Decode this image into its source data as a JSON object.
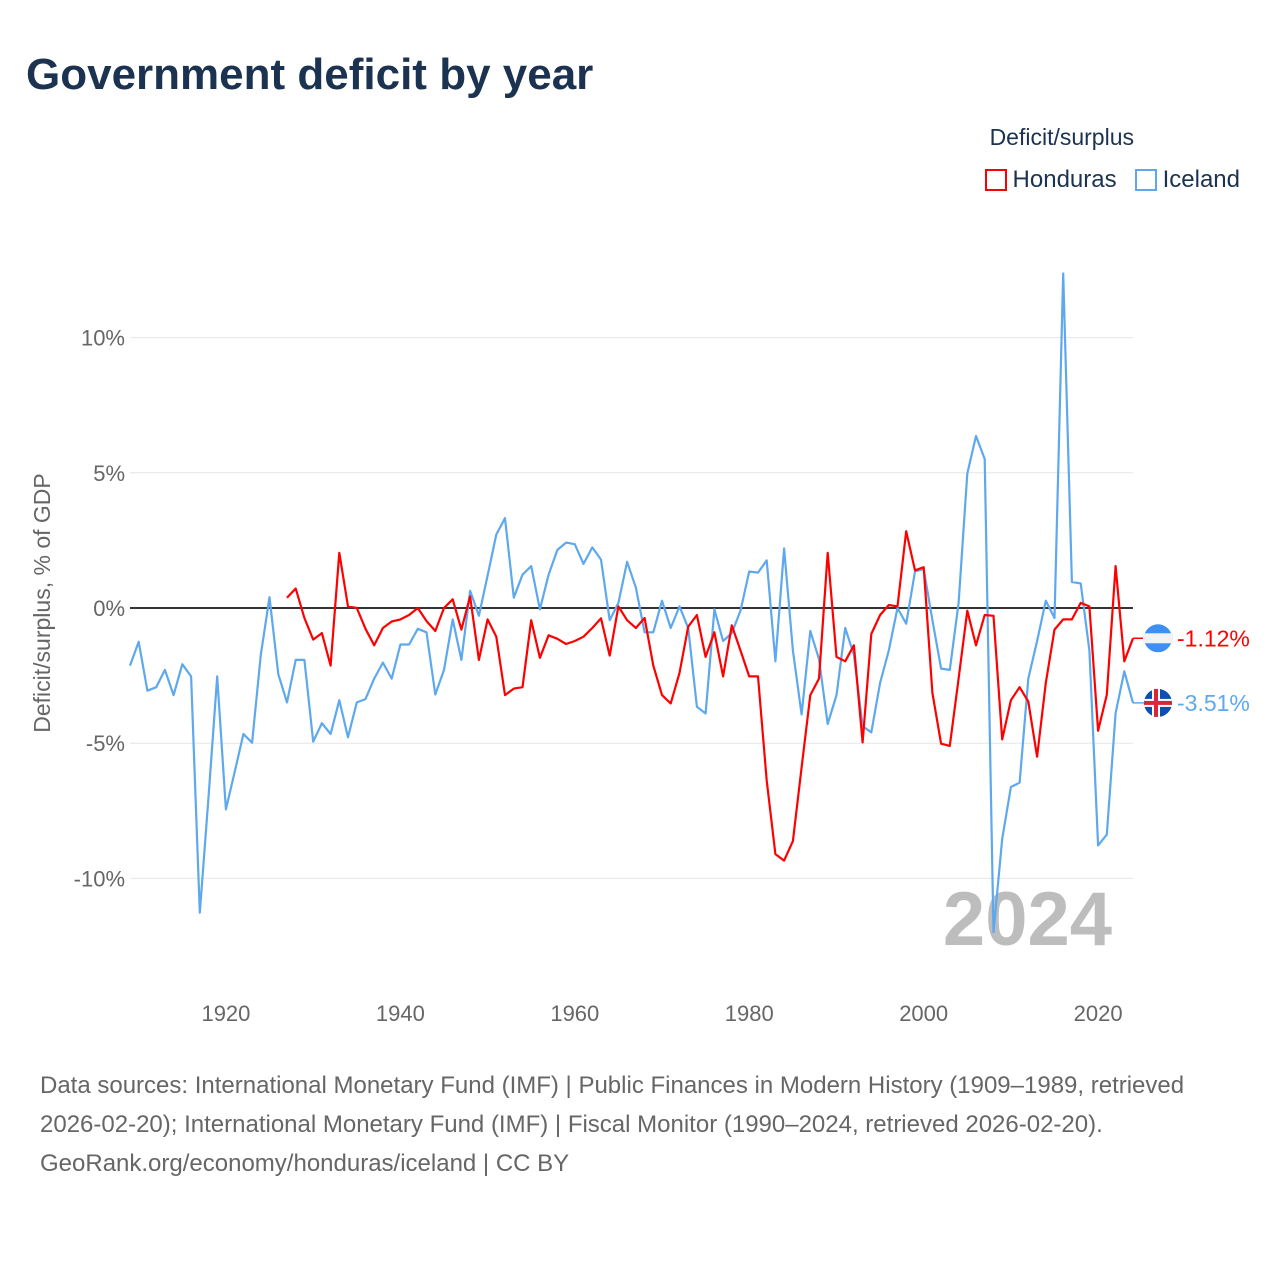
{
  "title": "Government deficit by year",
  "legend": {
    "title": "Deficit/surplus"
  },
  "chart_data": {
    "type": "line",
    "title": "Government deficit by year",
    "ylabel": "Deficit/surplus, % of GDP",
    "xlabel": "",
    "xlim": [
      1909,
      2024
    ],
    "ylim": [
      -12.5,
      12.5
    ],
    "yticks": [
      10,
      5,
      0,
      -5,
      -10
    ],
    "ytick_labels": [
      "10%",
      "5%",
      "0%",
      "-5%",
      "-10%"
    ],
    "xticks": [
      1920,
      1940,
      1960,
      1980,
      2000,
      2020
    ],
    "xtick_labels": [
      "1920",
      "1940",
      "1960",
      "1980",
      "2000",
      "2020"
    ],
    "grid": true,
    "legend_position": "top-right",
    "current_year": "2024",
    "series": [
      {
        "name": "Honduras",
        "color": "#ff0000",
        "end_label": "-1.12%",
        "start_year": 1927,
        "values": [
          0.38,
          0.72,
          -0.37,
          -1.17,
          -0.93,
          -2.13,
          2.04,
          0.06,
          0,
          -0.77,
          -1.38,
          -0.74,
          -0.5,
          -0.42,
          -0.26,
          0,
          -0.48,
          -0.85,
          0,
          0.32,
          -0.8,
          0.43,
          -1.92,
          -0.42,
          -1.06,
          -3.22,
          -2.98,
          -2.93,
          -0.45,
          -1.84,
          -1.01,
          -1.14,
          -1.33,
          -1.22,
          -1.06,
          -0.74,
          -0.38,
          -1.76,
          0.06,
          -0.45,
          -0.74,
          -0.37,
          -2.13,
          -3.22,
          -3.53,
          -2.4,
          -0.69,
          -0.26,
          -1.81,
          -0.9,
          -2.53,
          -0.64,
          -1.57,
          -2.53,
          -2.53,
          -6.38,
          -9.1,
          -9.34,
          -8.62,
          -5.9,
          -3.22,
          -2.61,
          2.04,
          -1.81,
          -1.97,
          -1.38,
          -4.97,
          -0.96,
          -0.26,
          0.11,
          0.06,
          2.84,
          1.39,
          1.51,
          -3.14,
          -5.02,
          -5.1,
          -2.61,
          -0.1,
          -1.38,
          -0.26,
          -0.29,
          -4.86,
          -3.41,
          -2.93,
          -3.46,
          -5.5,
          -2.77,
          -0.8,
          -0.42,
          -0.42,
          0.19,
          0.06,
          -4.54,
          -3.21,
          1.55,
          -1.97,
          -1.12
        ]
      },
      {
        "name": "Iceland",
        "color": "#5ea8ee",
        "end_label": "-3.51%",
        "start_year": 1909,
        "values": [
          -2.13,
          -1.25,
          -3.06,
          -2.93,
          -2.29,
          -3.22,
          -2.08,
          -2.53,
          -11.27,
          -7.0,
          -2.53,
          -7.45,
          -6.06,
          -4.66,
          -4.98,
          -1.73,
          0.4,
          -2.45,
          -3.49,
          -1.92,
          -1.92,
          -4.94,
          -4.26,
          -4.66,
          -3.41,
          -4.78,
          -3.49,
          -3.37,
          -2.61,
          -2.02,
          -2.61,
          -1.35,
          -1.35,
          -0.77,
          -0.9,
          -3.2,
          -2.29,
          -0.42,
          -1.92,
          0.64,
          -0.29,
          1.2,
          2.72,
          3.32,
          0.38,
          1.23,
          1.55,
          -0.05,
          1.23,
          2.15,
          2.42,
          2.36,
          1.63,
          2.24,
          1.79,
          -0.45,
          0.19,
          1.71,
          0.75,
          -0.9,
          -0.9,
          0.27,
          -0.74,
          0.06,
          -0.74,
          -3.65,
          -3.9,
          -0.05,
          -1.22,
          -0.93,
          -0.1,
          1.35,
          1.31,
          1.76,
          -1.97,
          2.2,
          -1.57,
          -3.94,
          -0.85,
          -1.89,
          -4.29,
          -3.22,
          -0.74,
          -1.73,
          -4.37,
          -4.6,
          -2.77,
          -1.57,
          0,
          -0.58,
          1.35,
          1.44,
          -0.45,
          -2.24,
          -2.29,
          0.19,
          4.97,
          6.36,
          5.51,
          -11.99,
          -8.54,
          -6.62,
          -6.46,
          -2.61,
          -1.22,
          0.27,
          -0.37,
          12.37,
          0.96,
          0.91,
          -1.57,
          -8.78,
          -8.38,
          -3.89,
          -2.34,
          -3.51
        ]
      }
    ]
  },
  "footer": {
    "sources": "Data sources: International Monetary Fund (IMF) | Public Finances in Modern History (1909–1989, retrieved 2026-02-20); International Monetary Fund (IMF) | Fiscal Monitor (1990–2024, retrieved 2026-02-20).",
    "credit": "GeoRank.org/economy/honduras/iceland | CC BY"
  }
}
